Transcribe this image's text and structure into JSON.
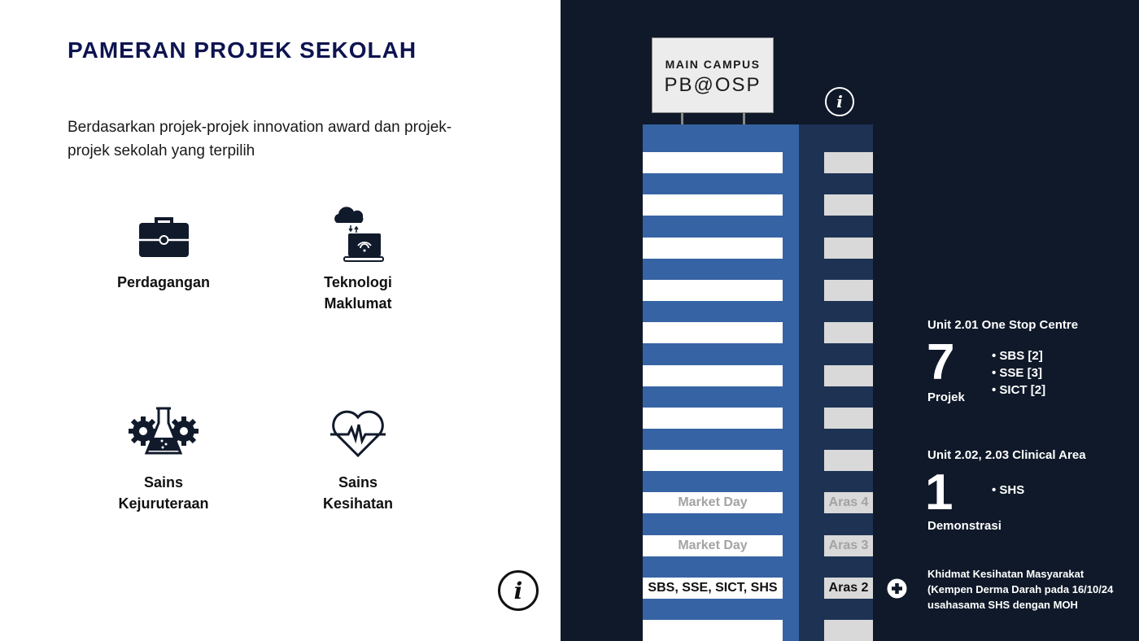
{
  "title": "PAMERAN PROJEK SEKOLAH",
  "subtitle": "Berdasarkan projek-projek innovation award dan projek-projek sekolah yang terpilih",
  "categories": [
    {
      "label_1": "Perdagangan",
      "label_2": "",
      "icon": "briefcase-icon"
    },
    {
      "label_1": "Teknologi",
      "label_2": "Maklumat",
      "icon": "cloud-laptop-icon"
    },
    {
      "label_1": "Sains",
      "label_2": "Kejuruteraan",
      "icon": "gears-flask-icon"
    },
    {
      "label_1": "Sains",
      "label_2": "Kesihatan",
      "icon": "heart-pulse-icon"
    }
  ],
  "sign": {
    "line1": "MAIN CAMPUS",
    "line2": "PB@OSP"
  },
  "floors": [
    {
      "label": "",
      "level": ""
    },
    {
      "label": "",
      "level": ""
    },
    {
      "label": "",
      "level": ""
    },
    {
      "label": "",
      "level": ""
    },
    {
      "label": "",
      "level": ""
    },
    {
      "label": "",
      "level": ""
    },
    {
      "label": "",
      "level": ""
    },
    {
      "label": "",
      "level": ""
    },
    {
      "label": "Market Day",
      "level": "Aras 4",
      "active": false
    },
    {
      "label": "Market Day",
      "level": "Aras 3",
      "active": false
    },
    {
      "label": "SBS, SSE, SICT, SHS",
      "level": "Aras 2",
      "active": true
    },
    {
      "label": "",
      "level": ""
    }
  ],
  "unit1": {
    "heading": "Unit 2.01 One Stop Centre",
    "count": "7",
    "count_label": "Projek",
    "items": [
      "SBS [2]",
      "SSE [3]",
      "SICT [2]"
    ]
  },
  "unit2": {
    "heading": "Unit 2.02, 2.03 Clinical Area",
    "count": "1",
    "count_label": "Demonstrasi",
    "items": [
      "SHS"
    ]
  },
  "note": {
    "line1": "Khidmat Kesihatan Masyarakat",
    "line2": "(Kempen Derma Darah pada 16/10/24",
    "line3": "usahasama SHS dengan MOH"
  },
  "colors": {
    "title": "#0d1450",
    "background_dark": "#0f1929",
    "building_blue": "#3663a4",
    "building_dark": "#1e3354"
  }
}
